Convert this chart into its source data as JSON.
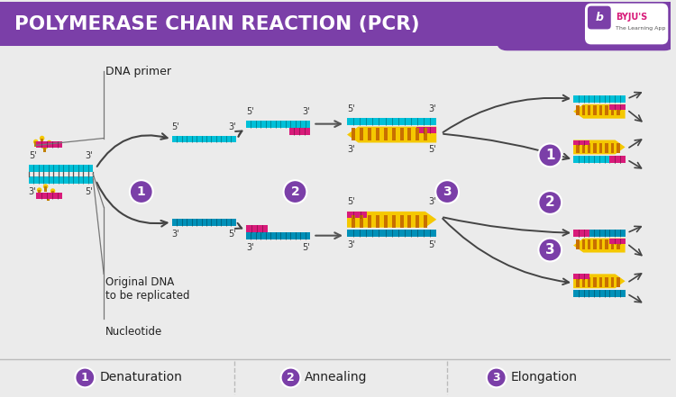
{
  "title": "POLYMERASE CHAIN REACTION (PCR)",
  "title_bg": "#7B3FA8",
  "title_color": "#FFFFFF",
  "content_bg": "#EBEBEB",
  "cyan": "#00C0D8",
  "cyan_dark": "#0090B8",
  "yellow": "#F5C800",
  "magenta": "#D81B7A",
  "orange_teeth": "#C87000",
  "purple": "#7B3FA8",
  "arrow_col": "#444444",
  "legend_items": [
    {
      "num": "1",
      "label": "Denaturation"
    },
    {
      "num": "2",
      "label": "Annealing"
    },
    {
      "num": "3",
      "label": "Elongation"
    }
  ]
}
